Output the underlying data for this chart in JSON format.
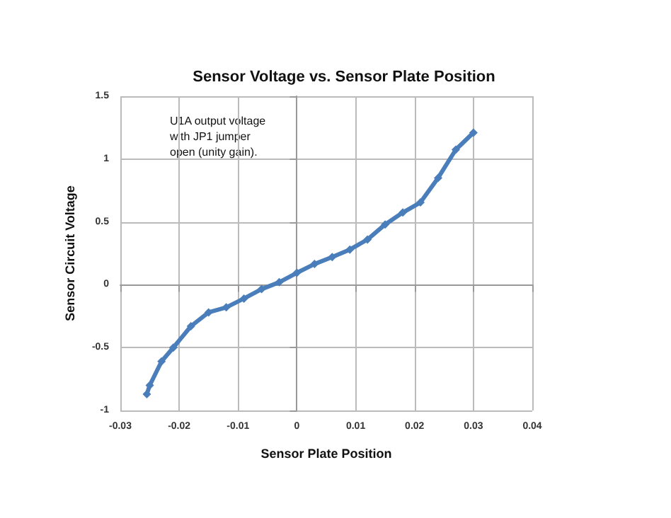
{
  "chart_data": {
    "type": "line",
    "title": "Sensor Voltage vs. Sensor Plate Position",
    "xlabel": "Sensor Plate Position",
    "ylabel": "Sensor Circuit Voltage",
    "annotations": [
      "U1A output voltage\nwith JP1 jumper\nopen (unity gain)."
    ],
    "series": [
      {
        "color": "#4a7ebb",
        "x": [
          -0.0255,
          -0.025,
          -0.023,
          -0.021,
          -0.018,
          -0.015,
          -0.012,
          -0.009,
          -0.006,
          -0.003,
          0,
          0.003,
          0.006,
          0.009,
          0.012,
          0.015,
          0.018,
          0.021,
          0.024,
          0.027,
          0.03
        ],
        "values": [
          -0.87,
          -0.8,
          -0.61,
          -0.5,
          -0.33,
          -0.22,
          -0.18,
          -0.11,
          -0.035,
          0.02,
          0.095,
          0.165,
          0.22,
          0.28,
          0.36,
          0.48,
          0.575,
          0.655,
          0.85,
          1.075,
          1.21
        ]
      }
    ],
    "xlim": [
      -0.03,
      0.04
    ],
    "xticks": [
      -0.03,
      -0.02,
      -0.01,
      0,
      0.01,
      0.02,
      0.03,
      0.04
    ],
    "ylim": [
      -1,
      1.5
    ],
    "yticks": [
      -1,
      -0.5,
      0,
      0.5,
      1,
      1.5
    ],
    "grid": true,
    "marker": "diamond",
    "line_style": "solid"
  }
}
